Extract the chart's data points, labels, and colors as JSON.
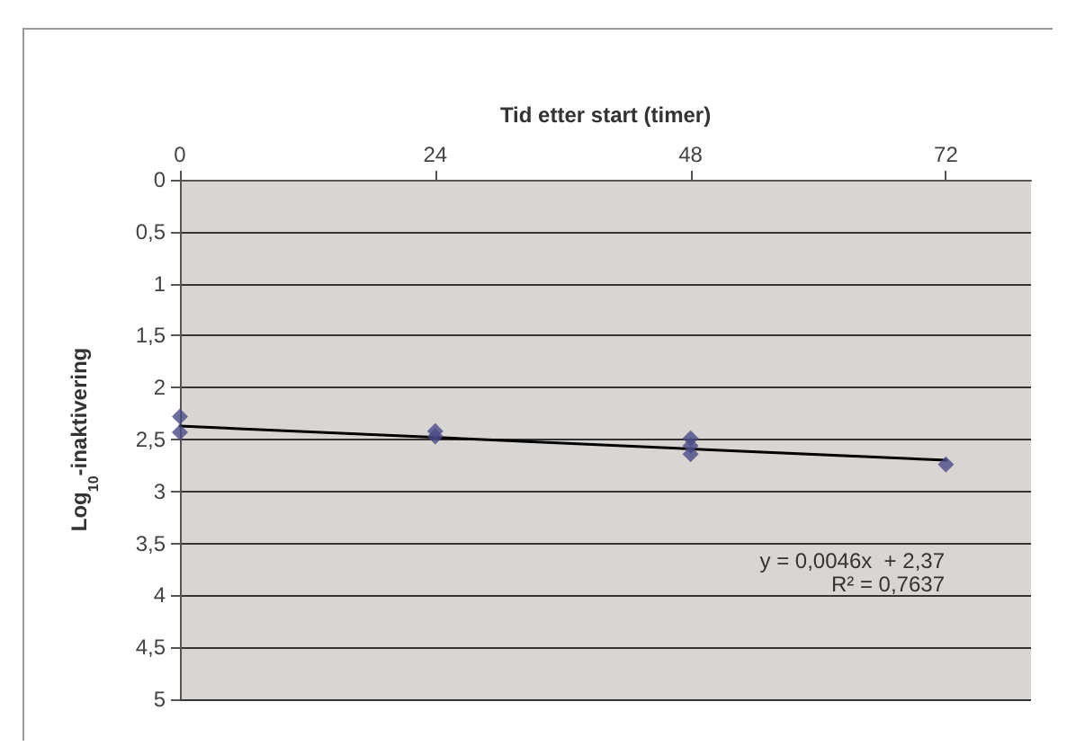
{
  "chart_data": {
    "type": "scatter",
    "xlabel": "Tid etter start (timer)",
    "ylabel": "Log$_{10}$-inaktivering",
    "xlim": [
      0,
      80
    ],
    "xticks": [
      0,
      24,
      48,
      72
    ],
    "ylim": [
      5,
      0
    ],
    "yticks": [
      0,
      {
        "value": 0.5,
        "label": "0,5"
      },
      1,
      {
        "value": 1.5,
        "label": "1,5"
      },
      2,
      {
        "value": 2.5,
        "label": "2,5"
      },
      3,
      {
        "value": 3.5,
        "label": "3,5"
      },
      4,
      {
        "value": 4.5,
        "label": "4,5"
      },
      5
    ],
    "grid": "y",
    "marker": "diamond",
    "series": [
      {
        "color": "#4a4a86",
        "x": [
          0,
          0,
          24,
          24,
          48,
          48,
          48,
          72
        ],
        "values": [
          2.28,
          2.43,
          2.42,
          2.47,
          2.49,
          2.56,
          2.64,
          2.74
        ]
      },
      {
        "type": "line",
        "color": "#000000",
        "x": [
          0,
          72
        ],
        "values": [
          2.37,
          2.7
        ],
        "marker": "none",
        "line_style": "solid"
      }
    ],
    "annotations": [
      "y = 0,0046x  + 2,37",
      "R² = 0,7637"
    ]
  }
}
